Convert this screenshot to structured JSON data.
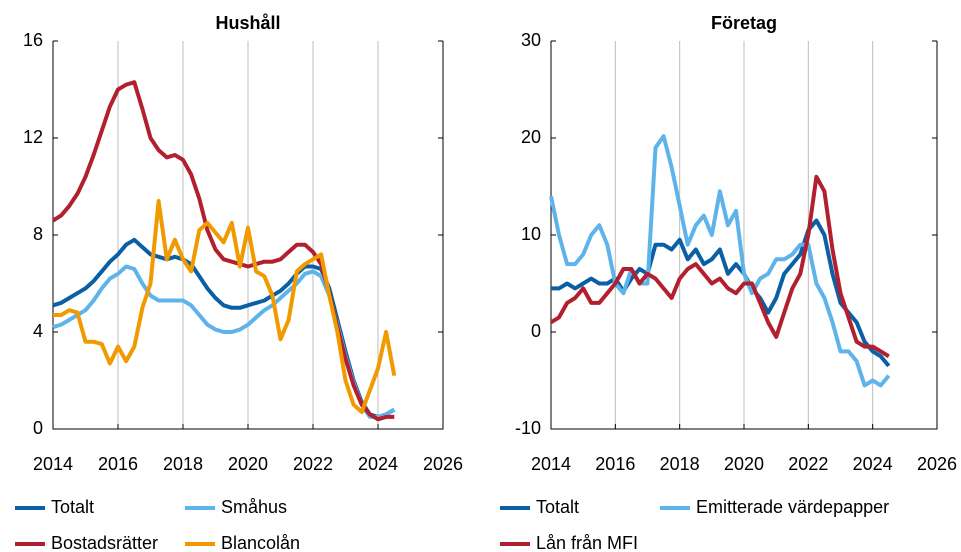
{
  "chart_data": [
    {
      "type": "line",
      "title": "Hushåll",
      "x": [
        2014,
        2014.25,
        2014.5,
        2014.75,
        2015,
        2015.25,
        2015.5,
        2015.75,
        2016,
        2016.25,
        2016.5,
        2016.75,
        2017,
        2017.25,
        2017.5,
        2017.75,
        2018,
        2018.25,
        2018.5,
        2018.75,
        2019,
        2019.25,
        2019.5,
        2019.75,
        2020,
        2020.25,
        2020.5,
        2020.75,
        2021,
        2021.25,
        2021.5,
        2021.75,
        2022,
        2022.25,
        2022.5,
        2022.75,
        2023,
        2023.25,
        2023.5,
        2023.75,
        2024,
        2024.25,
        2024.5
      ],
      "xlim": [
        2014,
        2026
      ],
      "xticks": [
        2014,
        2016,
        2018,
        2020,
        2022,
        2024,
        2026
      ],
      "ylim": [
        0,
        16
      ],
      "yticks": [
        0,
        4,
        8,
        12,
        16
      ],
      "grid": "x",
      "series": [
        {
          "name": "Totalt",
          "color": "#0b5fa5",
          "values": [
            5.1,
            5.2,
            5.4,
            5.6,
            5.8,
            6.1,
            6.5,
            6.9,
            7.2,
            7.6,
            7.8,
            7.5,
            7.2,
            7.1,
            7.0,
            7.1,
            7.0,
            6.8,
            6.3,
            5.8,
            5.4,
            5.1,
            5.0,
            5.0,
            5.1,
            5.2,
            5.3,
            5.5,
            5.7,
            6.0,
            6.4,
            6.7,
            6.7,
            6.6,
            5.8,
            4.5,
            3.2,
            2.0,
            1.1,
            0.6,
            0.5,
            0.6,
            0.8
          ]
        },
        {
          "name": "Småhus",
          "color": "#5eb4ea",
          "values": [
            4.2,
            4.3,
            4.5,
            4.7,
            4.9,
            5.3,
            5.8,
            6.2,
            6.4,
            6.7,
            6.6,
            6.0,
            5.5,
            5.3,
            5.3,
            5.3,
            5.3,
            5.1,
            4.7,
            4.3,
            4.1,
            4.0,
            4.0,
            4.1,
            4.3,
            4.6,
            4.9,
            5.1,
            5.4,
            5.7,
            6.0,
            6.4,
            6.5,
            6.3,
            5.5,
            4.3,
            3.0,
            1.9,
            1.0,
            0.5,
            0.5,
            0.6,
            0.8
          ]
        },
        {
          "name": "Bostadsrätter",
          "color": "#b21f2e",
          "values": [
            8.6,
            8.8,
            9.2,
            9.7,
            10.4,
            11.3,
            12.3,
            13.3,
            14.0,
            14.2,
            14.3,
            13.2,
            12.0,
            11.5,
            11.2,
            11.3,
            11.1,
            10.5,
            9.5,
            8.2,
            7.4,
            7.0,
            6.9,
            6.8,
            6.7,
            6.8,
            6.9,
            6.9,
            7.0,
            7.3,
            7.6,
            7.6,
            7.3,
            6.8,
            5.6,
            4.2,
            2.9,
            1.8,
            1.0,
            0.6,
            0.4,
            0.5,
            0.5
          ]
        },
        {
          "name": "Blancolån",
          "color": "#f09a00",
          "values": [
            4.7,
            4.7,
            4.9,
            4.8,
            3.6,
            3.6,
            3.5,
            2.7,
            3.4,
            2.8,
            3.4,
            5.0,
            6.0,
            9.4,
            7.0,
            7.8,
            7.0,
            6.5,
            8.2,
            8.5,
            8.1,
            7.7,
            8.5,
            6.7,
            8.3,
            6.5,
            6.3,
            5.5,
            3.7,
            4.5,
            6.5,
            6.8,
            7.0,
            7.2,
            5.5,
            4.0,
            2.0,
            1.0,
            0.7,
            1.6,
            2.5,
            4.0,
            2.2
          ]
        }
      ]
    },
    {
      "type": "line",
      "title": "Företag",
      "x": [
        2014,
        2014.25,
        2014.5,
        2014.75,
        2015,
        2015.25,
        2015.5,
        2015.75,
        2016,
        2016.25,
        2016.5,
        2016.75,
        2017,
        2017.25,
        2017.5,
        2017.75,
        2018,
        2018.25,
        2018.5,
        2018.75,
        2019,
        2019.25,
        2019.5,
        2019.75,
        2020,
        2020.25,
        2020.5,
        2020.75,
        2021,
        2021.25,
        2021.5,
        2021.75,
        2022,
        2022.25,
        2022.5,
        2022.75,
        2023,
        2023.25,
        2023.5,
        2023.75,
        2024,
        2024.25,
        2024.5
      ],
      "xlim": [
        2014,
        2026
      ],
      "xticks": [
        2014,
        2016,
        2018,
        2020,
        2022,
        2024,
        2026
      ],
      "ylim": [
        -10,
        30
      ],
      "yticks": [
        -10,
        0,
        10,
        20,
        30
      ],
      "grid": "x",
      "series": [
        {
          "name": "Totalt",
          "color": "#0b5fa5",
          "values": [
            4.5,
            4.5,
            5.0,
            4.5,
            5.0,
            5.5,
            5.0,
            5.0,
            5.5,
            4.2,
            5.5,
            6.5,
            6.0,
            9.0,
            9.0,
            8.5,
            9.5,
            7.5,
            8.5,
            7.0,
            7.5,
            8.5,
            6.0,
            7.0,
            6.0,
            4.5,
            3.5,
            2.0,
            3.5,
            6.0,
            7.0,
            8.0,
            10.5,
            11.5,
            10.0,
            6.0,
            3.0,
            2.0,
            1.0,
            -1.0,
            -2.0,
            -2.5,
            -3.5
          ]
        },
        {
          "name": "Emitterade värdepapper",
          "color": "#5eb4ea",
          "values": [
            14.0,
            10.0,
            7.0,
            7.0,
            8.0,
            10.0,
            11.0,
            9.0,
            5.0,
            4.0,
            6.5,
            5.0,
            5.0,
            19.0,
            20.2,
            17.0,
            13.0,
            9.0,
            11.0,
            12.0,
            10.0,
            14.5,
            11.0,
            12.5,
            6.0,
            4.0,
            5.5,
            6.0,
            7.5,
            7.5,
            8.0,
            9.0,
            9.0,
            5.0,
            3.5,
            1.0,
            -2.0,
            -2.0,
            -3.0,
            -5.5,
            -5.0,
            -5.5,
            -4.5
          ]
        },
        {
          "name": "Lån från MFI",
          "color": "#b21f2e",
          "values": [
            1.0,
            1.5,
            3.0,
            3.5,
            4.5,
            3.0,
            3.0,
            4.0,
            5.0,
            6.5,
            6.5,
            5.0,
            6.0,
            5.5,
            4.5,
            3.5,
            5.5,
            6.5,
            7.0,
            6.0,
            5.0,
            5.5,
            4.5,
            4.0,
            5.0,
            5.0,
            3.0,
            1.0,
            -0.5,
            2.0,
            4.5,
            6.0,
            10.0,
            16.0,
            14.5,
            8.5,
            4.0,
            1.5,
            -1.0,
            -1.5,
            -1.5,
            -2.0,
            -2.5
          ]
        }
      ]
    }
  ]
}
